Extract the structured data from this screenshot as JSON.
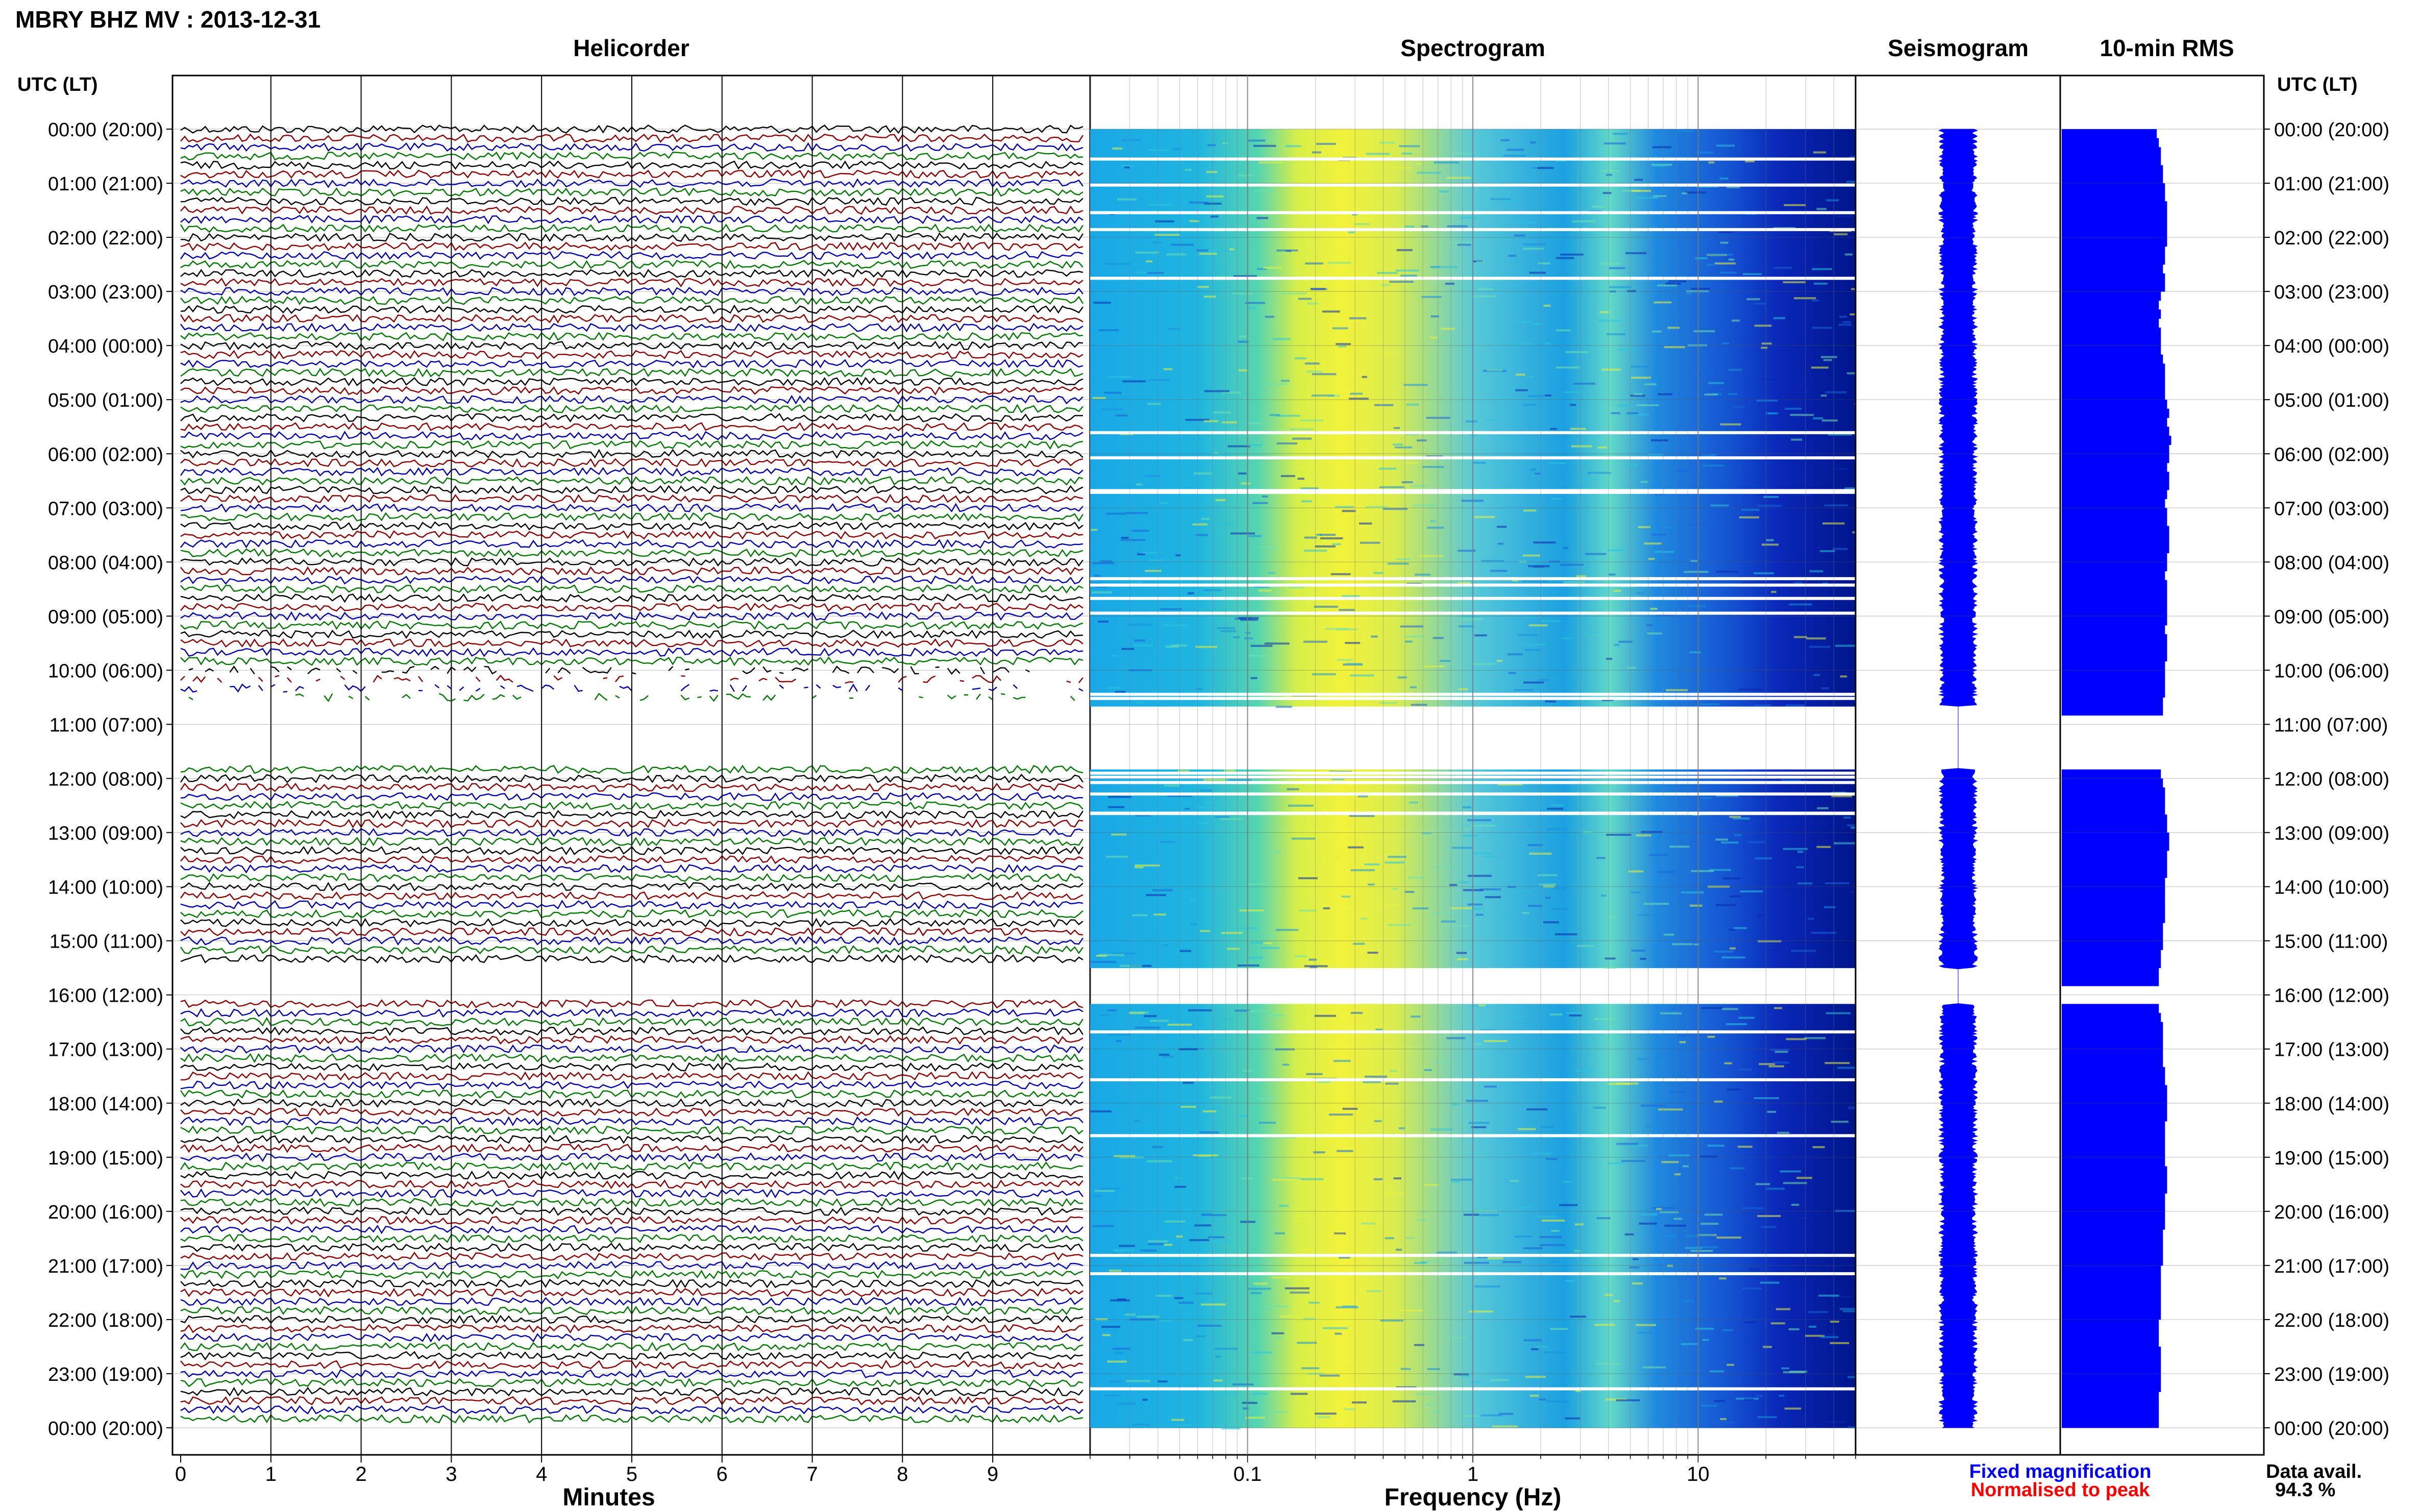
{
  "title": "MBRY BHZ MV : 2013-12-31",
  "utc_lt_label": "UTC (LT)",
  "panels": {
    "helicorder": "Helicorder",
    "spectrogram": "Spectrogram",
    "seismogram": "Seismogram",
    "rms": "10-min RMS"
  },
  "hour_labels": [
    "00:00 (20:00)",
    "01:00 (21:00)",
    "02:00 (22:00)",
    "03:00 (23:00)",
    "04:00 (00:00)",
    "05:00 (01:00)",
    "06:00 (02:00)",
    "07:00 (03:00)",
    "08:00 (04:00)",
    "09:00 (05:00)",
    "10:00 (06:00)",
    "11:00 (07:00)",
    "12:00 (08:00)",
    "13:00 (09:00)",
    "14:00 (10:00)",
    "15:00 (11:00)",
    "16:00 (12:00)",
    "17:00 (13:00)",
    "18:00 (14:00)",
    "19:00 (15:00)",
    "20:00 (16:00)",
    "21:00 (17:00)",
    "22:00 (18:00)",
    "23:00 (19:00)",
    "00:00 (20:00)"
  ],
  "minutes_axis": {
    "label": "Minutes",
    "ticks": [
      "0",
      "1",
      "2",
      "3",
      "4",
      "5",
      "6",
      "7",
      "8",
      "9"
    ]
  },
  "frequency_axis": {
    "label": "Frequency (Hz)",
    "ticks": [
      "0.1",
      "1",
      "10"
    ]
  },
  "legend": {
    "fixed": "Fixed magnification",
    "normalised": "Normalised to peak"
  },
  "data_avail": {
    "label": "Data avail.",
    "value": "94.3 %"
  },
  "colors": {
    "trace_cycle": [
      "#000000",
      "#8b0000",
      "#0000aa",
      "#007700"
    ],
    "fixed_label": "#0000ff",
    "normalised_label": "#ff0000",
    "rms_fill": "#0000ff",
    "seismo": "#0000ff"
  },
  "chart_data": {
    "type": "heatmap",
    "station": "MBRY",
    "channel": "BHZ",
    "network": "MV",
    "date": "2013-12-31",
    "time_range_utc": [
      "00:00",
      "24:00"
    ],
    "helicorder_minutes": [
      0,
      10
    ],
    "frequency_range_hz": [
      0.02,
      50
    ],
    "frequency_scale": "log",
    "data_gaps_utc": [
      [
        "10:40",
        "11:50"
      ],
      [
        "15:30",
        "16:10"
      ]
    ],
    "partial_data_utc": [
      [
        "10:00",
        "11:00"
      ],
      [
        "15:50",
        "16:10"
      ]
    ],
    "rms_10min_relative": [
      0.46,
      0.47,
      0.48,
      0.48,
      0.49,
      0.49,
      0.5,
      0.5,
      0.51,
      0.51,
      0.51,
      0.51,
      0.51,
      0.5,
      0.5,
      0.49,
      0.5,
      0.5,
      0.48,
      0.47,
      0.48,
      0.47,
      0.48,
      0.48,
      0.48,
      0.49,
      0.5,
      0.5,
      0.5,
      0.5,
      0.51,
      0.52,
      0.51,
      0.52,
      0.53,
      0.52,
      0.52,
      0.51,
      0.52,
      0.52,
      0.51,
      0.5,
      0.51,
      0.51,
      0.52,
      0.52,
      0.52,
      0.51,
      0.51,
      0.5,
      0.51,
      0.51,
      0.51,
      0.51,
      0.51,
      0.5,
      0.51,
      0.51,
      0.51,
      0.5,
      0.5,
      0.5,
      0.5,
      0.49,
      0.49,
      0.0,
      0.0,
      0.0,
      0.0,
      0.0,
      0.0,
      0.48,
      0.49,
      0.5,
      0.5,
      0.5,
      0.51,
      0.51,
      0.52,
      0.52,
      0.51,
      0.51,
      0.51,
      0.5,
      0.5,
      0.5,
      0.5,
      0.5,
      0.49,
      0.49,
      0.49,
      0.48,
      0.48,
      0.47,
      0.47,
      0.0,
      0.0,
      0.47,
      0.48,
      0.49,
      0.49,
      0.49,
      0.49,
      0.49,
      0.5,
      0.5,
      0.51,
      0.51,
      0.51,
      0.51,
      0.5,
      0.5,
      0.5,
      0.5,
      0.5,
      0.51,
      0.51,
      0.51,
      0.5,
      0.5,
      0.5,
      0.5,
      0.49,
      0.49,
      0.49,
      0.49,
      0.48,
      0.48,
      0.48,
      0.48,
      0.48,
      0.48,
      0.47,
      0.47,
      0.47,
      0.48,
      0.48,
      0.48,
      0.48,
      0.48,
      0.47,
      0.47,
      0.47,
      0.47
    ],
    "data_availability_percent": 94.3
  }
}
